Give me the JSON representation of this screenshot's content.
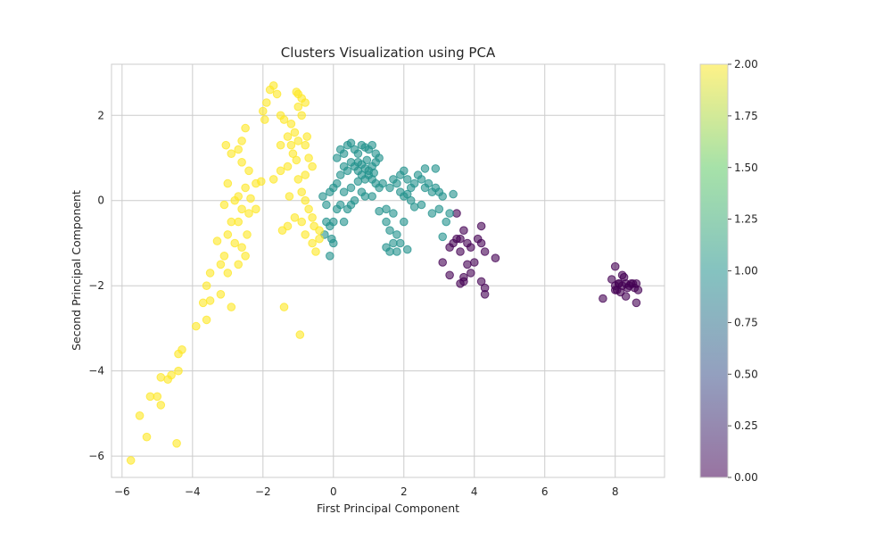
{
  "chart_data": {
    "type": "scatter",
    "title": "Clusters Visualization using PCA",
    "xlabel": "First Principal Component",
    "ylabel": "Second Principal Component",
    "xlim": [
      -6.3,
      9.4
    ],
    "ylim": [
      -6.5,
      3.2
    ],
    "xticks": [
      "−6",
      "−4",
      "−2",
      "0",
      "2",
      "4",
      "6",
      "8"
    ],
    "yticks": [
      "−6",
      "−4",
      "−2",
      "0",
      "2"
    ],
    "grid": true,
    "colorbar": {
      "range": [
        0.0,
        2.0
      ],
      "ticks": [
        "0.00",
        "0.25",
        "0.50",
        "0.75",
        "1.00",
        "1.25",
        "1.50",
        "1.75",
        "2.00"
      ],
      "colormap": [
        "#440154",
        "#3b528b",
        "#21918c",
        "#5ec962",
        "#fde725"
      ]
    },
    "series": [
      {
        "cluster": "0",
        "color": "#440154",
        "points": [
          [
            3.4,
            -1.0
          ],
          [
            3.5,
            -0.9
          ],
          [
            3.6,
            -1.2
          ],
          [
            3.7,
            -0.7
          ],
          [
            3.8,
            -1.0
          ],
          [
            3.9,
            -1.1
          ],
          [
            3.3,
            -1.1
          ],
          [
            3.6,
            -0.9
          ],
          [
            3.5,
            -0.3
          ],
          [
            4.2,
            -0.6
          ],
          [
            4.1,
            -0.9
          ],
          [
            4.2,
            -1.0
          ],
          [
            4.3,
            -1.2
          ],
          [
            4.6,
            -1.35
          ],
          [
            3.8,
            -1.5
          ],
          [
            3.9,
            -1.7
          ],
          [
            4.0,
            -1.45
          ],
          [
            3.7,
            -1.8
          ],
          [
            3.6,
            -1.95
          ],
          [
            3.7,
            -1.9
          ],
          [
            3.3,
            -1.75
          ],
          [
            3.1,
            -1.45
          ],
          [
            4.2,
            -1.9
          ],
          [
            4.3,
            -2.05
          ],
          [
            4.3,
            -2.2
          ],
          [
            7.65,
            -2.3
          ],
          [
            7.9,
            -1.85
          ],
          [
            8.0,
            -1.55
          ],
          [
            8.0,
            -2.0
          ],
          [
            8.05,
            -2.1
          ],
          [
            8.1,
            -1.95
          ],
          [
            8.2,
            -1.75
          ],
          [
            8.25,
            -1.8
          ],
          [
            8.2,
            -2.0
          ],
          [
            8.3,
            -1.95
          ],
          [
            8.3,
            -2.25
          ],
          [
            8.15,
            -2.15
          ],
          [
            8.4,
            -2.0
          ],
          [
            8.45,
            -1.95
          ],
          [
            8.5,
            -1.95
          ],
          [
            8.35,
            -2.05
          ],
          [
            8.55,
            -2.05
          ],
          [
            8.6,
            -1.95
          ],
          [
            8.65,
            -2.1
          ],
          [
            8.6,
            -2.4
          ],
          [
            8.1,
            -1.95
          ],
          [
            8.0,
            -2.1
          ]
        ]
      },
      {
        "cluster": "1",
        "color": "#21918c",
        "points": [
          [
            0.1,
            1.0
          ],
          [
            0.2,
            1.2
          ],
          [
            0.3,
            1.1
          ],
          [
            0.4,
            1.3
          ],
          [
            0.5,
            1.35
          ],
          [
            0.6,
            1.2
          ],
          [
            0.7,
            1.1
          ],
          [
            0.8,
            1.3
          ],
          [
            0.9,
            1.25
          ],
          [
            1.0,
            1.2
          ],
          [
            1.1,
            1.3
          ],
          [
            1.2,
            1.1
          ],
          [
            1.3,
            1.0
          ],
          [
            0.5,
            0.9
          ],
          [
            0.6,
            0.8
          ],
          [
            0.7,
            0.9
          ],
          [
            0.8,
            0.85
          ],
          [
            0.9,
            0.75
          ],
          [
            1.0,
            0.7
          ],
          [
            1.1,
            0.8
          ],
          [
            1.2,
            0.9
          ],
          [
            0.7,
            0.7
          ],
          [
            0.8,
            0.6
          ],
          [
            0.9,
            0.5
          ],
          [
            1.0,
            0.6
          ],
          [
            1.1,
            0.5
          ],
          [
            1.2,
            0.4
          ],
          [
            1.3,
            0.3
          ],
          [
            1.4,
            0.4
          ],
          [
            0.4,
            0.7
          ],
          [
            0.3,
            0.8
          ],
          [
            0.2,
            0.6
          ],
          [
            0.1,
            0.4
          ],
          [
            0.0,
            0.3
          ],
          [
            -0.1,
            0.2
          ],
          [
            -0.3,
            0.1
          ],
          [
            -0.2,
            -0.1
          ],
          [
            0.1,
            -0.2
          ],
          [
            0.2,
            -0.1
          ],
          [
            0.4,
            -0.2
          ],
          [
            0.5,
            -0.1
          ],
          [
            0.6,
            0.0
          ],
          [
            0.3,
            0.2
          ],
          [
            0.5,
            0.3
          ],
          [
            0.8,
            0.2
          ],
          [
            0.9,
            0.1
          ],
          [
            1.1,
            0.1
          ],
          [
            -0.2,
            -0.5
          ],
          [
            -0.1,
            -0.6
          ],
          [
            0.0,
            -0.5
          ],
          [
            -0.25,
            -0.8
          ],
          [
            -0.05,
            -0.9
          ],
          [
            0.0,
            -1.0
          ],
          [
            -0.1,
            -1.3
          ],
          [
            1.6,
            0.3
          ],
          [
            1.7,
            0.5
          ],
          [
            1.8,
            0.4
          ],
          [
            1.9,
            0.6
          ],
          [
            2.0,
            0.7
          ],
          [
            2.1,
            0.5
          ],
          [
            2.2,
            0.3
          ],
          [
            2.3,
            0.4
          ],
          [
            2.4,
            0.6
          ],
          [
            2.5,
            0.5
          ],
          [
            2.6,
            0.3
          ],
          [
            2.7,
            0.4
          ],
          [
            2.8,
            0.2
          ],
          [
            2.9,
            0.3
          ],
          [
            3.0,
            0.2
          ],
          [
            3.1,
            0.1
          ],
          [
            2.6,
            0.75
          ],
          [
            2.9,
            0.75
          ],
          [
            2.0,
            0.1
          ],
          [
            2.2,
            0.0
          ],
          [
            2.5,
            -0.1
          ],
          [
            2.8,
            -0.3
          ],
          [
            3.0,
            -0.2
          ],
          [
            3.2,
            -0.5
          ],
          [
            3.3,
            -0.3
          ],
          [
            3.4,
            0.15
          ],
          [
            1.5,
            -0.5
          ],
          [
            1.6,
            -0.7
          ],
          [
            1.7,
            -0.3
          ],
          [
            1.8,
            -0.8
          ],
          [
            1.9,
            -1.0
          ],
          [
            2.0,
            -0.5
          ],
          [
            1.5,
            -1.1
          ],
          [
            1.6,
            -1.2
          ],
          [
            1.7,
            -1.0
          ],
          [
            2.1,
            -1.15
          ],
          [
            3.1,
            -0.85
          ],
          [
            1.8,
            -1.2
          ],
          [
            1.3,
            -0.25
          ],
          [
            1.5,
            -0.2
          ],
          [
            2.3,
            -0.15
          ],
          [
            1.9,
            0.2
          ],
          [
            2.1,
            0.15
          ],
          [
            0.3,
            -0.5
          ],
          [
            0.7,
            0.45
          ],
          [
            0.95,
            0.95
          ],
          [
            1.15,
            0.65
          ]
        ]
      },
      {
        "cluster": "2",
        "color": "#fde725",
        "points": [
          [
            -1.7,
            2.7
          ],
          [
            -1.8,
            2.6
          ],
          [
            -1.6,
            2.5
          ],
          [
            -1.9,
            2.3
          ],
          [
            -2.0,
            2.1
          ],
          [
            -1.5,
            2.0
          ],
          [
            -1.4,
            1.9
          ],
          [
            -1.2,
            1.8
          ],
          [
            -1.0,
            2.5
          ],
          [
            -0.9,
            2.4
          ],
          [
            -0.8,
            2.3
          ],
          [
            -1.0,
            2.2
          ],
          [
            -0.9,
            2.0
          ],
          [
            -1.1,
            1.6
          ],
          [
            -1.3,
            1.5
          ],
          [
            -1.5,
            1.3
          ],
          [
            -1.2,
            1.3
          ],
          [
            -1.0,
            1.4
          ],
          [
            -0.8,
            1.3
          ],
          [
            -0.7,
            1.0
          ],
          [
            -0.6,
            0.8
          ],
          [
            -0.8,
            0.6
          ],
          [
            -1.0,
            0.5
          ],
          [
            -1.3,
            0.8
          ],
          [
            -1.5,
            0.7
          ],
          [
            -1.7,
            0.5
          ],
          [
            -0.9,
            0.2
          ],
          [
            -0.8,
            0.0
          ],
          [
            -0.7,
            -0.2
          ],
          [
            -0.6,
            -0.4
          ],
          [
            -0.9,
            -0.5
          ],
          [
            -1.1,
            -0.4
          ],
          [
            -1.3,
            -0.6
          ],
          [
            -0.8,
            -0.8
          ],
          [
            -0.6,
            -1.0
          ],
          [
            -0.5,
            -1.2
          ],
          [
            -0.4,
            -0.7
          ],
          [
            -0.4,
            -0.9
          ],
          [
            -2.5,
            1.7
          ],
          [
            -2.6,
            1.4
          ],
          [
            -2.7,
            1.2
          ],
          [
            -2.9,
            1.1
          ],
          [
            -2.6,
            0.9
          ],
          [
            -2.4,
            0.7
          ],
          [
            -2.2,
            0.4
          ],
          [
            -2.5,
            0.3
          ],
          [
            -2.7,
            0.1
          ],
          [
            -2.8,
            0.0
          ],
          [
            -2.6,
            -0.2
          ],
          [
            -2.4,
            -0.3
          ],
          [
            -2.2,
            -0.2
          ],
          [
            -3.0,
            0.4
          ],
          [
            -3.1,
            -0.1
          ],
          [
            -2.9,
            -0.5
          ],
          [
            -2.7,
            -0.5
          ],
          [
            -3.0,
            -0.8
          ],
          [
            -2.8,
            -1.0
          ],
          [
            -2.6,
            -1.1
          ],
          [
            -2.5,
            -1.3
          ],
          [
            -2.7,
            -1.5
          ],
          [
            -3.1,
            -1.3
          ],
          [
            -3.2,
            -1.5
          ],
          [
            -3.0,
            -1.7
          ],
          [
            -3.5,
            -1.7
          ],
          [
            -3.3,
            -0.95
          ],
          [
            -3.6,
            -2.0
          ],
          [
            -3.7,
            -2.4
          ],
          [
            -3.5,
            -2.35
          ],
          [
            -3.2,
            -2.2
          ],
          [
            -2.9,
            -2.5
          ],
          [
            -3.6,
            -2.8
          ],
          [
            -3.9,
            -2.95
          ],
          [
            -4.3,
            -3.5
          ],
          [
            -4.4,
            -3.6
          ],
          [
            -4.4,
            -4.0
          ],
          [
            -4.6,
            -4.1
          ],
          [
            -4.7,
            -4.2
          ],
          [
            -4.9,
            -4.15
          ],
          [
            -5.0,
            -4.6
          ],
          [
            -4.9,
            -4.8
          ],
          [
            -5.2,
            -4.6
          ],
          [
            -5.3,
            -5.55
          ],
          [
            -5.5,
            -5.05
          ],
          [
            -5.75,
            -6.1
          ],
          [
            -4.45,
            -5.7
          ],
          [
            -1.4,
            -2.5
          ],
          [
            -0.95,
            -3.15
          ],
          [
            -1.05,
            2.55
          ],
          [
            -1.15,
            1.1
          ],
          [
            -1.95,
            1.9
          ],
          [
            -2.05,
            0.45
          ],
          [
            -0.55,
            -0.6
          ],
          [
            -1.05,
            0.95
          ],
          [
            -0.75,
            1.5
          ],
          [
            -1.25,
            0.1
          ],
          [
            -1.45,
            -0.7
          ],
          [
            -2.35,
            0.05
          ],
          [
            -3.05,
            1.3
          ],
          [
            -2.45,
            -0.8
          ]
        ]
      }
    ]
  }
}
